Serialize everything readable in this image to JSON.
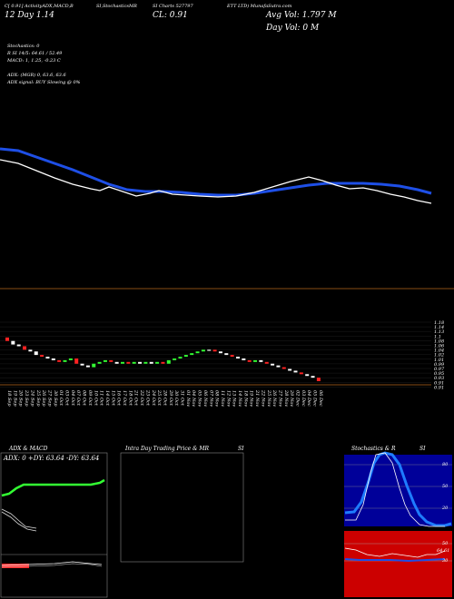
{
  "header": {
    "line1_left": "C[ 0.91] ActivityADX,MACD,B",
    "line1_mid": "SI,StochasticsMR",
    "line1_right": "SI Charts 527797",
    "line1_far": "ETT LTD) MunafaSutra.com",
    "line2_left": "12 Day 1.14",
    "line2_close": "CL: 0.91",
    "avg_vol": "Avg Vol: 1.797 M",
    "day_vol": "Day Vol: 0  M"
  },
  "indicators": {
    "stoch": "Stochastics: 0",
    "rsi": "R                    SI 14/5: 64.61 / 52.49",
    "macd": "MACD: 1,  1.25,  -0.23 C",
    "adx": "ADX:                         (MGR) 0,  63.6,  63.6",
    "adx_signal": "ADX  signal:                               BUY Slowing @ 0%"
  },
  "colors": {
    "accent_blue": "#1e4fe6",
    "price_line": "#ffffff",
    "orange_line": "#b5651d",
    "up_candle": "#33ff33",
    "down_candle": "#ff2222",
    "stoch_bg": "#000099",
    "rsi_bg": "#cc0000"
  },
  "price_axis_labels": [
    "1.18",
    "1.14",
    "1.13",
    "1.1",
    "1.08",
    "1.06",
    "1.04",
    "1.02",
    "1.01",
    "0.99",
    "0.97",
    "0.95",
    "0.93",
    "0.91",
    "0.91"
  ],
  "bottom_panels": {
    "adx_title": "ADX  & MACD",
    "adx_readout": "ADX: 0  +DY: 63.64  -DY: 63.64",
    "intraday_title": "Intra  Day Trading Price  & MR",
    "intraday_si": "SI",
    "stoch_title": "Stochastics & R",
    "stoch_si": "SI",
    "stoch_ticks": [
      "80",
      "50",
      "20"
    ],
    "rsi_ticks": [
      "50",
      "30"
    ],
    "rsi_value": "64.61"
  },
  "chart_data": {
    "type": "candlestick",
    "title": "",
    "dates": [
      "18 Sep",
      "19 Sep",
      "20 Sep",
      "23 Sep",
      "24 Sep",
      "25 Sep",
      "26 Sep",
      "27 Sep",
      "30 Sep",
      "01 Oct",
      "03 Oct",
      "04 Oct",
      "07 Oct",
      "08 Oct",
      "09 Oct",
      "10 Oct",
      "11 Oct",
      "14 Oct",
      "15 Oct",
      "16 Oct",
      "17 Oct",
      "18 Oct",
      "21 Oct",
      "22 Oct",
      "23 Oct",
      "24 Oct",
      "25 Oct",
      "28 Oct",
      "29 Oct",
      "30 Oct",
      "31 Oct",
      "01 Nov",
      "04 Nov",
      "05 Nov",
      "06 Nov",
      "07 Nov",
      "08 Nov",
      "11 Nov",
      "12 Nov",
      "13 Nov",
      "14 Nov",
      "18 Nov",
      "19 Nov",
      "21 Nov",
      "22 Nov",
      "25 Nov",
      "26 Nov",
      "27 Nov",
      "28 Nov",
      "29 Nov",
      "02 Dec",
      "03 Dec",
      "04 Dec",
      "05 Dec",
      "06 Dec"
    ],
    "close": [
      1.14,
      1.12,
      1.11,
      1.09,
      1.08,
      1.06,
      1.05,
      1.04,
      1.03,
      1.02,
      1.03,
      1.04,
      1.01,
      1.0,
      0.99,
      1.01,
      1.02,
      1.03,
      1.02,
      1.01,
      1.02,
      1.01,
      1.02,
      1.01,
      1.02,
      1.01,
      1.02,
      1.01,
      1.03,
      1.04,
      1.05,
      1.06,
      1.07,
      1.08,
      1.09,
      1.09,
      1.08,
      1.07,
      1.06,
      1.05,
      1.04,
      1.03,
      1.02,
      1.03,
      1.02,
      1.01,
      1.0,
      0.99,
      0.98,
      0.97,
      0.96,
      0.95,
      0.94,
      0.93,
      0.91
    ],
    "ylim": [
      0.91,
      1.18
    ]
  }
}
